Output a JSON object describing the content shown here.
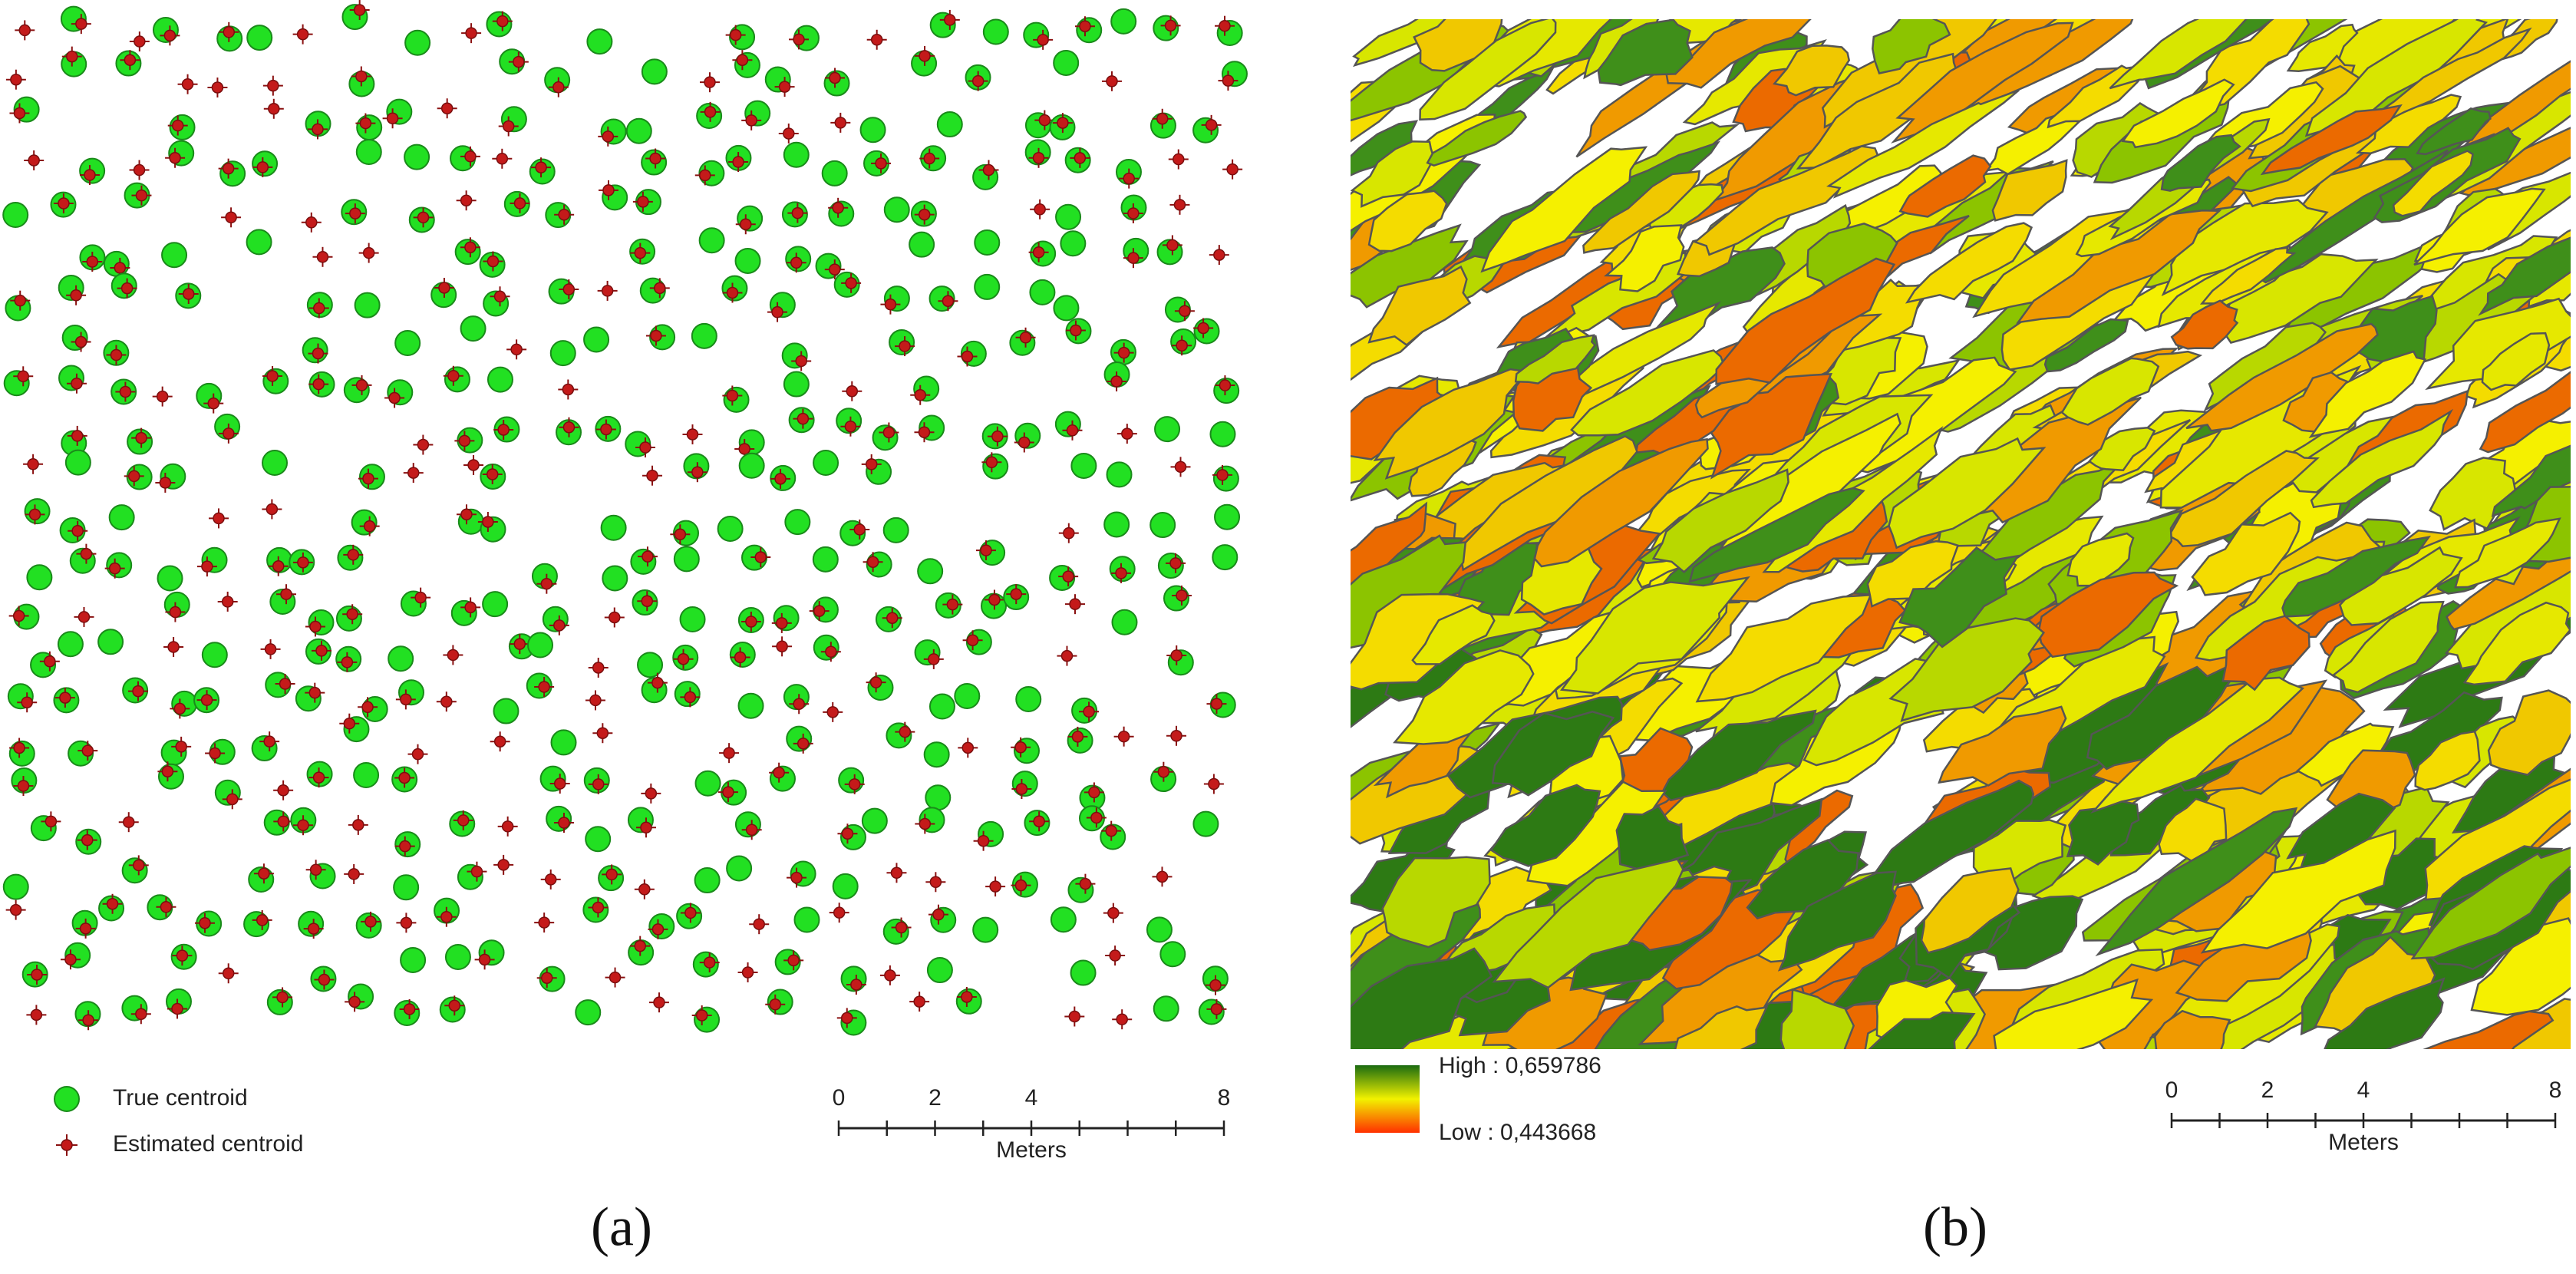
{
  "panel_a": {
    "legend": [
      "True centroid",
      "Estimated centroid"
    ],
    "scale_ticks": [
      0,
      2,
      4,
      8
    ],
    "scale_unit": "Meters",
    "caption": "(a)"
  },
  "panel_b": {
    "legend_high": "High : 0,659786",
    "legend_low": "Low : 0,443668",
    "scale_ticks": [
      0,
      2,
      4,
      8
    ],
    "scale_unit": "Meters",
    "caption": "(b)"
  }
}
